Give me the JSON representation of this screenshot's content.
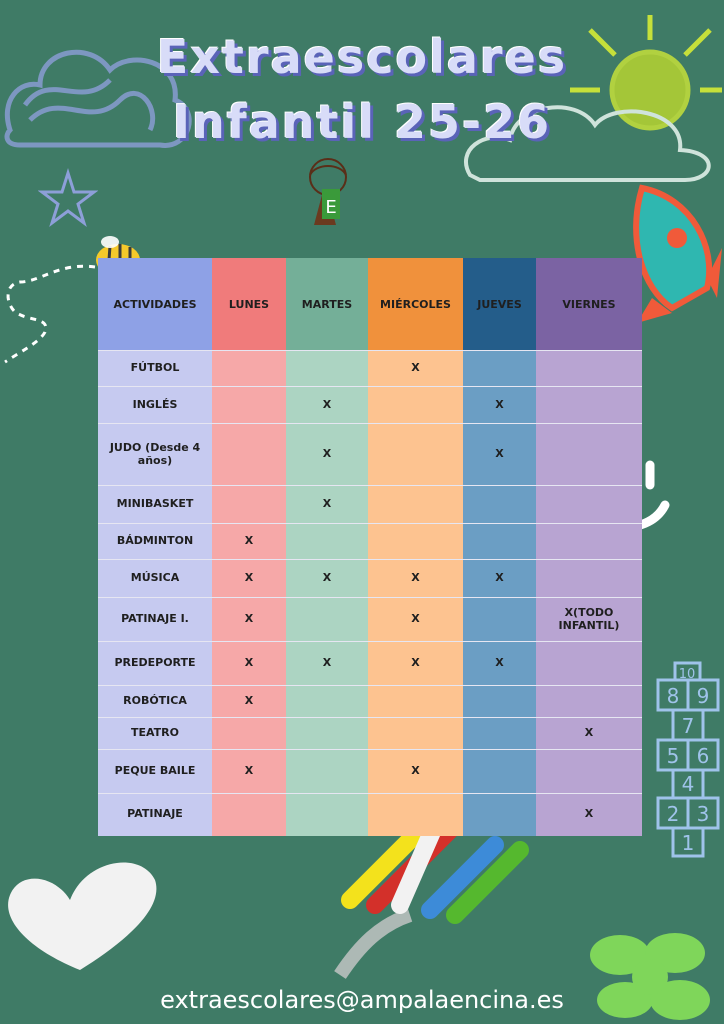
{
  "title": {
    "line1": "Extraescolares",
    "line2": "Infantil 25-26"
  },
  "logo": {
    "text": "ENCINA"
  },
  "table": {
    "headers": [
      "ACTIVIDADES",
      "LUNES",
      "MARTES",
      "MIÉRCOLES",
      "JUEVES",
      "VIERNES"
    ],
    "rows": [
      [
        "FÚTBOL",
        "",
        "",
        "X",
        "",
        ""
      ],
      [
        "INGLÉS",
        "",
        "X",
        "",
        "X",
        ""
      ],
      [
        "JUDO (Desde 4 años)",
        "",
        "X",
        "",
        "X",
        ""
      ],
      [
        "MINIBASKET",
        "",
        "X",
        "",
        "",
        ""
      ],
      [
        "BÁDMINTON",
        "X",
        "",
        "",
        "",
        ""
      ],
      [
        "MÚSICA",
        "X",
        "X",
        "X",
        "X",
        ""
      ],
      [
        "PATINAJE I.",
        "X",
        "",
        "X",
        "",
        "X(TODO INFANTIL)"
      ],
      [
        "PREDEPORTE",
        "X",
        "X",
        "X",
        "X",
        ""
      ],
      [
        "ROBÓTICA",
        "X",
        "",
        "",
        "",
        ""
      ],
      [
        "TEATRO",
        "",
        "",
        "",
        "",
        "X"
      ],
      [
        "PEQUE BAILE",
        "X",
        "",
        "X",
        "",
        ""
      ],
      [
        "PATINAJE",
        "",
        "",
        "",
        "",
        "X"
      ]
    ]
  },
  "hopscotch": [
    "10",
    "8",
    "9",
    "7",
    "5",
    "6",
    "4",
    "2",
    "3",
    "1"
  ],
  "email": "extraescolares@ampalaencina.es",
  "colors": {
    "background": "#3f7b66",
    "title_fill": "#d8dcf8",
    "title_shadow": "#5a63b8"
  },
  "icons": [
    "cloud-doodle",
    "star-doodle",
    "sun-doodle",
    "bee-icon",
    "rocket-icon",
    "smiley-icon",
    "hopscotch-icon",
    "heart-icon",
    "chalk-icon",
    "flower-icon"
  ]
}
